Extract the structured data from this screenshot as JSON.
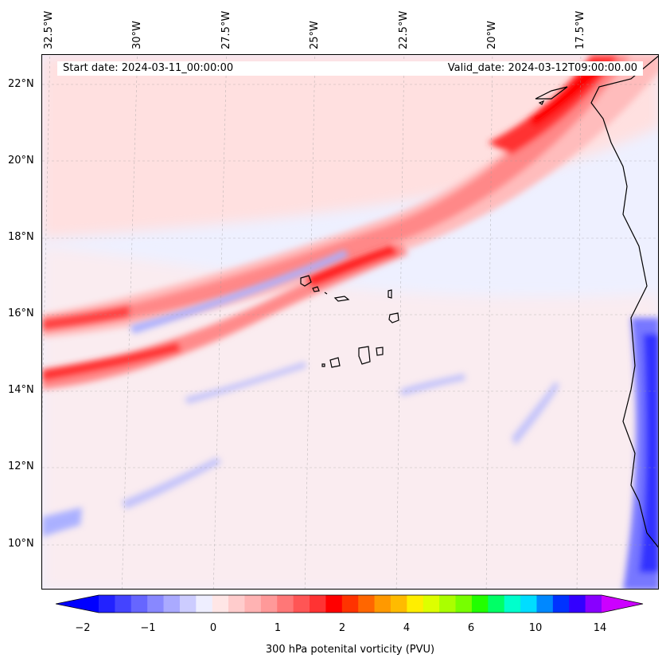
{
  "header": {
    "start_date": "Start date: 2024-03-11_00:00:00",
    "valid_date": "Valid_date: 2024-03-12T09:00:00.00"
  },
  "map": {
    "longitude_labels": [
      "32.5°W",
      "30°W",
      "27.5°W",
      "25°W",
      "22.5°W",
      "20°W",
      "17.5°W"
    ],
    "latitude_labels": [
      "22°N",
      "20°N",
      "18°N",
      "16°N",
      "14°N",
      "12°N",
      "10°N"
    ],
    "extent": {
      "lon_min": -33.0,
      "lon_max": -15.6,
      "lat_min": 8.9,
      "lat_max": 22.8
    },
    "gridlines": true
  },
  "colorbar": {
    "title": "300 hPa potenital vorticity (PVU)",
    "tick_labels": [
      "−2",
      "−1",
      "0",
      "1",
      "2",
      "4",
      "6",
      "10",
      "14"
    ],
    "colors": [
      "#0000ff",
      "#2222ff",
      "#4444ff",
      "#6666ff",
      "#8888ff",
      "#aaaaff",
      "#ccccff",
      "#eeeeff",
      "#ffe6e6",
      "#ffcccc",
      "#ffb3b3",
      "#ff9999",
      "#ff7777",
      "#ff5555",
      "#ff3333",
      "#ff0000",
      "#ff3300",
      "#ff6600",
      "#ff9900",
      "#ffbb00",
      "#ffee00",
      "#ddff00",
      "#aaff00",
      "#77ff00",
      "#22ff00",
      "#00ff66",
      "#00ffcc",
      "#00ddff",
      "#0088ff",
      "#0033ff",
      "#3300ff",
      "#8800ff",
      "#cc00ff"
    ]
  }
}
